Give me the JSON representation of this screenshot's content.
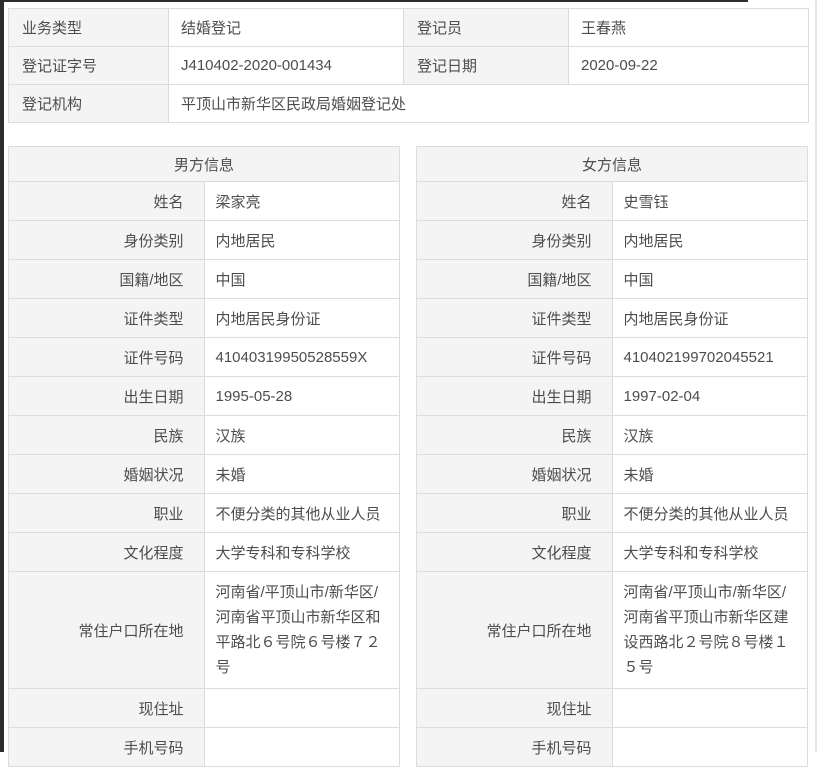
{
  "registration": {
    "rows": [
      {
        "label": "业务类型",
        "value": "结婚登记",
        "label2": "登记员",
        "value2": "王春燕"
      },
      {
        "label": "登记证字号",
        "value": "J410402-2020-001434",
        "label2": "登记日期",
        "value2": "2020-09-22"
      },
      {
        "label": "登记机构",
        "value": "平顶山市新华区民政局婚姻登记处"
      }
    ]
  },
  "male": {
    "title": "男方信息",
    "fields": [
      {
        "label": "姓名",
        "value": "梁家亮"
      },
      {
        "label": "身份类别",
        "value": "内地居民"
      },
      {
        "label": "国籍/地区",
        "value": "中国"
      },
      {
        "label": "证件类型",
        "value": "内地居民身份证"
      },
      {
        "label": "证件号码",
        "value": "41040319950528559X"
      },
      {
        "label": "出生日期",
        "value": "1995-05-28"
      },
      {
        "label": "民族",
        "value": "汉族"
      },
      {
        "label": "婚姻状况",
        "value": "未婚"
      },
      {
        "label": "职业",
        "value": "不便分类的其他从业人员"
      },
      {
        "label": "文化程度",
        "value": "大学专科和专科学校"
      },
      {
        "label": "常住户口所在地",
        "value": "河南省/平顶山市/新华区/河南省平顶山市新华区和平路北６号院６号楼７２号"
      },
      {
        "label": "现住址",
        "value": ""
      },
      {
        "label": "手机号码",
        "value": ""
      }
    ]
  },
  "female": {
    "title": "女方信息",
    "fields": [
      {
        "label": "姓名",
        "value": "史雪钰"
      },
      {
        "label": "身份类别",
        "value": "内地居民"
      },
      {
        "label": "国籍/地区",
        "value": "中国"
      },
      {
        "label": "证件类型",
        "value": "内地居民身份证"
      },
      {
        "label": "证件号码",
        "value": "410402199702045521"
      },
      {
        "label": "出生日期",
        "value": "1997-02-04"
      },
      {
        "label": "民族",
        "value": "汉族"
      },
      {
        "label": "婚姻状况",
        "value": "未婚"
      },
      {
        "label": "职业",
        "value": "不便分类的其他从业人员"
      },
      {
        "label": "文化程度",
        "value": "大学专科和专科学校"
      },
      {
        "label": "常住户口所在地",
        "value": "河南省/平顶山市/新华区/河南省平顶山市新华区建设西路北２号院８号楼１５号"
      },
      {
        "label": "现住址",
        "value": ""
      },
      {
        "label": "手机号码",
        "value": ""
      }
    ]
  },
  "colors": {
    "label_bg": "#f4f4f4",
    "border": "#dcdcdc",
    "text": "#4d4d4d",
    "edge_dark": "#2d2d2d"
  }
}
